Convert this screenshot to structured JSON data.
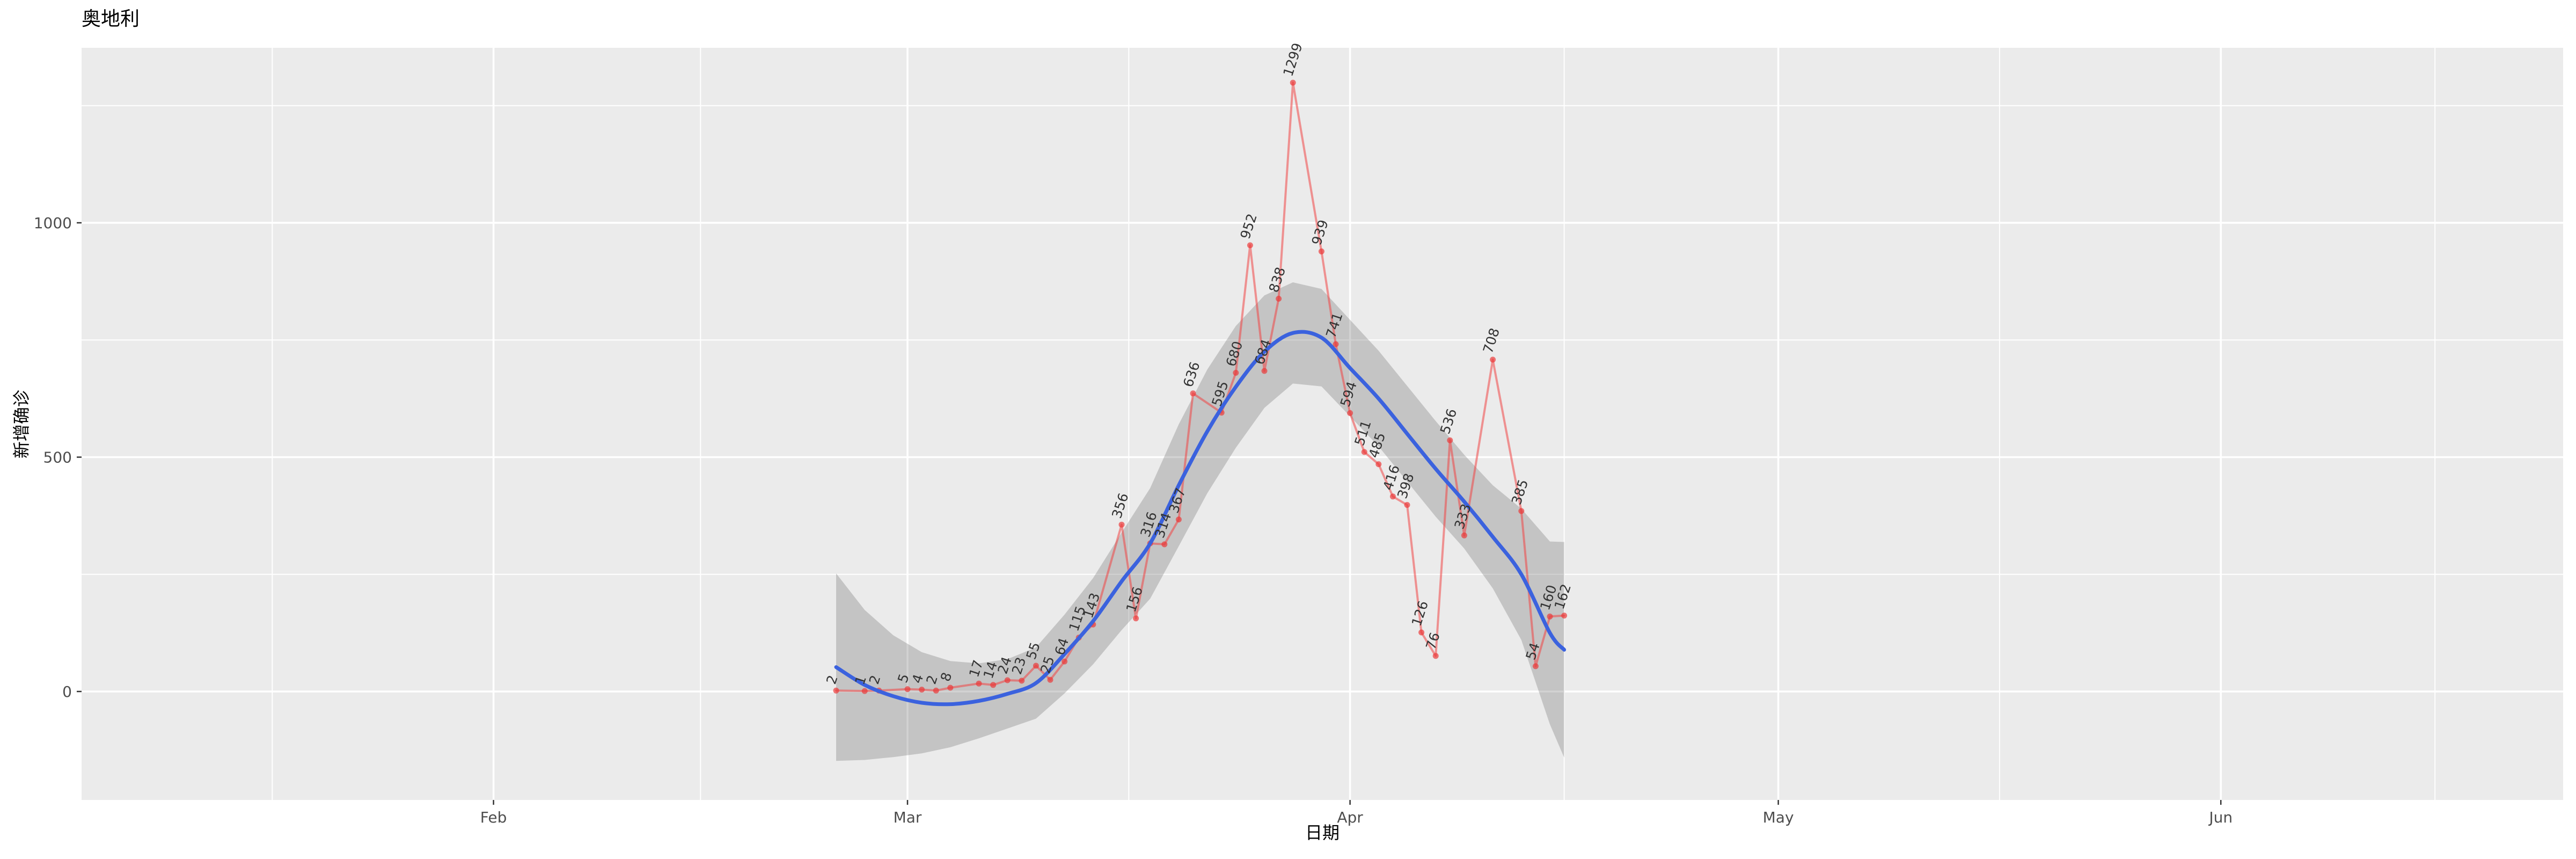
{
  "title": "奥地利",
  "axes": {
    "x_title": "日期",
    "y_title": "新增确诊",
    "x_ticks": [
      "Feb",
      "Mar",
      "Apr",
      "May",
      "Jun"
    ],
    "y_ticks": [
      "0",
      "500",
      "1000"
    ]
  },
  "colors": {
    "background": "#FFFFFF",
    "panel": "#EBEBEB",
    "grid": "#FFFFFF",
    "ribbon": "rgba(115,115,115,0.32)",
    "data_line": "rgba(240,70,70,0.55)",
    "data_point": "rgba(235,55,55,0.68)",
    "smooth_line": "#3B62DE",
    "point_label": "#333333",
    "tick_label": "#4D4D4D",
    "tick_mark": "#333333"
  },
  "chart_data": {
    "type": "line",
    "title": "奥地利",
    "xlabel": "日期",
    "ylabel": "新增确诊",
    "x_axis": {
      "tick_labels": [
        "Feb",
        "Mar",
        "Apr",
        "May",
        "Jun"
      ],
      "major_tick_t": [
        -24,
        5,
        36,
        66,
        97
      ],
      "minor_tick_t": [
        -39.5,
        -9.5,
        20.5,
        51,
        81.5,
        112
      ],
      "note_t_units": "days since first data point (2020-02-25)"
    },
    "y_axis": {
      "tick_values": [
        0,
        500,
        1000
      ],
      "minor_tick_values": [
        250,
        750,
        1250
      ],
      "range": [
        -231,
        1373
      ],
      "grid": true,
      "legend": "none"
    },
    "series": [
      {
        "name": "新增确诊 (daily new confirmed)",
        "color_hint": "red line with points, each point labeled with its value (labels rotated)",
        "points": [
          {
            "date": "2020-02-25",
            "t": 0,
            "value": 2
          },
          {
            "date": "2020-02-27",
            "t": 2,
            "value": 1
          },
          {
            "date": "2020-02-28",
            "t": 3,
            "value": 2
          },
          {
            "date": "2020-03-01",
            "t": 5,
            "value": 5
          },
          {
            "date": "2020-03-02",
            "t": 6,
            "value": 4
          },
          {
            "date": "2020-03-03",
            "t": 7,
            "value": 2
          },
          {
            "date": "2020-03-04",
            "t": 8,
            "value": 8
          },
          {
            "date": "2020-03-06",
            "t": 10,
            "value": 17
          },
          {
            "date": "2020-03-07",
            "t": 11,
            "value": 14
          },
          {
            "date": "2020-03-08",
            "t": 12,
            "value": 24
          },
          {
            "date": "2020-03-09",
            "t": 13,
            "value": 23
          },
          {
            "date": "2020-03-10",
            "t": 14,
            "value": 55
          },
          {
            "date": "2020-03-11",
            "t": 15,
            "value": 25
          },
          {
            "date": "2020-03-12",
            "t": 16,
            "value": 64
          },
          {
            "date": "2020-03-13",
            "t": 17,
            "value": 115
          },
          {
            "date": "2020-03-14",
            "t": 18,
            "value": 143
          },
          {
            "date": "2020-03-16",
            "t": 20,
            "value": 356
          },
          {
            "date": "2020-03-17",
            "t": 21,
            "value": 156
          },
          {
            "date": "2020-03-18",
            "t": 22,
            "value": 316
          },
          {
            "date": "2020-03-19",
            "t": 23,
            "value": 314
          },
          {
            "date": "2020-03-20",
            "t": 24,
            "value": 367
          },
          {
            "date": "2020-03-21",
            "t": 25,
            "value": 636
          },
          {
            "date": "2020-03-23",
            "t": 27,
            "value": 595
          },
          {
            "date": "2020-03-24",
            "t": 28,
            "value": 680
          },
          {
            "date": "2020-03-25",
            "t": 29,
            "value": 952
          },
          {
            "date": "2020-03-26",
            "t": 30,
            "value": 684
          },
          {
            "date": "2020-03-27",
            "t": 31,
            "value": 838
          },
          {
            "date": "2020-03-28",
            "t": 32,
            "value": 1299
          },
          {
            "date": "2020-03-30",
            "t": 34,
            "value": 939
          },
          {
            "date": "2020-03-31",
            "t": 35,
            "value": 741
          },
          {
            "date": "2020-04-01",
            "t": 36,
            "value": 594
          },
          {
            "date": "2020-04-02",
            "t": 37,
            "value": 511
          },
          {
            "date": "2020-04-03",
            "t": 38,
            "value": 485
          },
          {
            "date": "2020-04-04",
            "t": 39,
            "value": 416
          },
          {
            "date": "2020-04-05",
            "t": 40,
            "value": 398
          },
          {
            "date": "2020-04-06",
            "t": 41,
            "value": 126
          },
          {
            "date": "2020-04-07",
            "t": 42,
            "value": 76
          },
          {
            "date": "2020-04-08",
            "t": 43,
            "value": 536
          },
          {
            "date": "2020-04-09",
            "t": 44,
            "value": 333
          },
          {
            "date": "2020-04-11",
            "t": 46,
            "value": 708
          },
          {
            "date": "2020-04-13",
            "t": 48,
            "value": 385
          },
          {
            "date": "2020-04-14",
            "t": 49,
            "value": 54
          },
          {
            "date": "2020-04-15",
            "t": 50,
            "value": 160
          },
          {
            "date": "2020-04-16",
            "t": 51,
            "value": 162
          }
        ]
      }
    ],
    "smooth": {
      "name": "loess smooth with confidence ribbon",
      "color_hint": "blue line, gray semi-transparent band",
      "samples": [
        {
          "t": 0,
          "y": 52,
          "hw": 200
        },
        {
          "t": 2,
          "y": 14,
          "hw": 160
        },
        {
          "t": 4,
          "y": -10,
          "hw": 130
        },
        {
          "t": 6,
          "y": -24,
          "hw": 108
        },
        {
          "t": 8,
          "y": -27,
          "hw": 92
        },
        {
          "t": 10,
          "y": -20,
          "hw": 80
        },
        {
          "t": 12,
          "y": -5,
          "hw": 74
        },
        {
          "t": 14,
          "y": 18,
          "hw": 76
        },
        {
          "t": 16,
          "y": 80,
          "hw": 84
        },
        {
          "t": 18,
          "y": 150,
          "hw": 92
        },
        {
          "t": 20,
          "y": 235,
          "hw": 104
        },
        {
          "t": 22,
          "y": 316,
          "hw": 118
        },
        {
          "t": 24,
          "y": 440,
          "hw": 130
        },
        {
          "t": 26,
          "y": 555,
          "hw": 132
        },
        {
          "t": 28,
          "y": 650,
          "hw": 130
        },
        {
          "t": 30,
          "y": 725,
          "hw": 120
        },
        {
          "t": 32,
          "y": 765,
          "hw": 108
        },
        {
          "t": 34,
          "y": 755,
          "hw": 104
        },
        {
          "t": 36,
          "y": 690,
          "hw": 103
        },
        {
          "t": 38,
          "y": 625,
          "hw": 102
        },
        {
          "t": 40,
          "y": 550,
          "hw": 102
        },
        {
          "t": 42,
          "y": 475,
          "hw": 102
        },
        {
          "t": 44,
          "y": 405,
          "hw": 100
        },
        {
          "t": 46,
          "y": 330,
          "hw": 110
        },
        {
          "t": 48,
          "y": 250,
          "hw": 140
        },
        {
          "t": 50,
          "y": 125,
          "hw": 195
        },
        {
          "t": 51,
          "y": 89,
          "hw": 230
        }
      ]
    }
  }
}
